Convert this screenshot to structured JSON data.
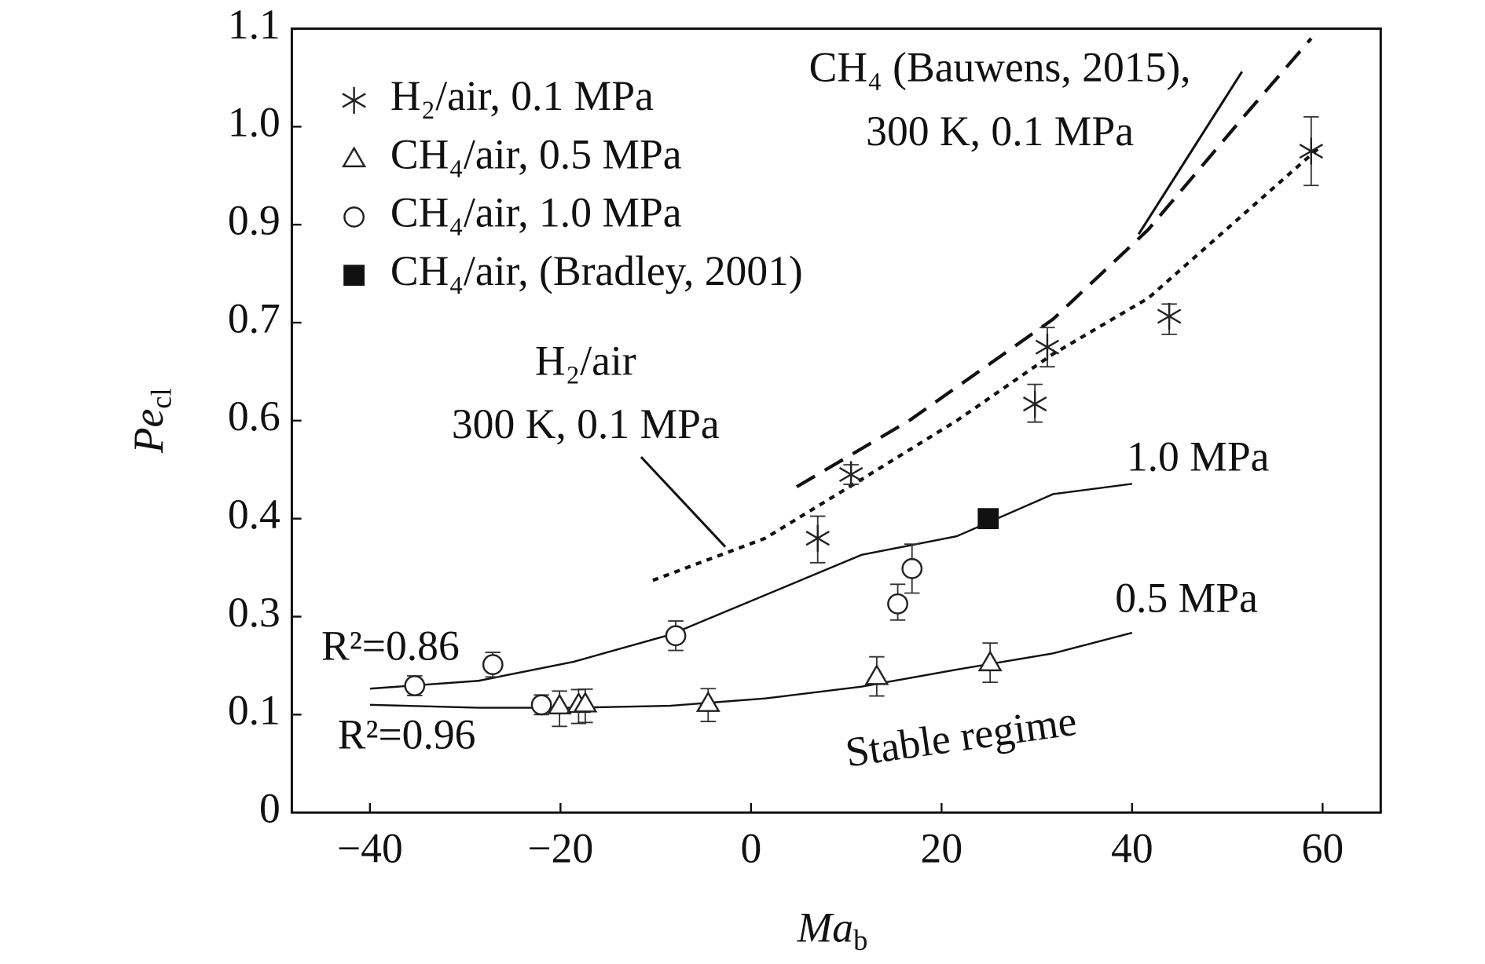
{
  "chart_data": {
    "type": "scatter",
    "xlabel": "Ma",
    "xlabel_sub": "b",
    "ylabel": "Pe",
    "ylabel_sub": "cl",
    "xlim": [
      -48.2,
      66.1
    ],
    "ylim": [
      0,
      1.1
    ],
    "yscale": "ticks-evenly-spaced",
    "xticks": [
      {
        "value": -40,
        "label": "−40"
      },
      {
        "value": -20,
        "label": "−20"
      },
      0,
      20,
      40,
      60
    ],
    "yticks": [
      0,
      0.1,
      0.3,
      0.4,
      0.6,
      0.7,
      0.9,
      {
        "value": 1,
        "label": "1.0"
      },
      1.1
    ],
    "legend": "upper left",
    "series": [
      {
        "name": "H₂/air, 0.1 MPa",
        "marker": "asterisk",
        "color": "#222222",
        "x": [
          7.0,
          10.5,
          29.8,
          31.1,
          43.9,
          58.8
        ],
        "values": [
          0.38,
          0.49,
          0.617,
          0.675,
          0.713,
          0.975
        ],
        "errors": [
          0.025,
          0.02,
          0.02,
          0.02,
          0.025,
          0.035
        ]
      },
      {
        "name": "CH₄/air, 0.5 MPa",
        "marker": "triangle",
        "color": "#222222",
        "x": [
          -20.1,
          -18.1,
          -17.4,
          -4.5,
          13.2,
          25.1
        ],
        "values": [
          0.118,
          0.121,
          0.122,
          0.123,
          0.178,
          0.206
        ],
        "errors": [
          0.03,
          0.03,
          0.03,
          0.03,
          0.04,
          0.04
        ]
      },
      {
        "name": "CH₄/air, 1.0 MPa",
        "marker": "circle",
        "color": "#222222",
        "x": [
          -35.3,
          -27.1,
          -22,
          -7.9,
          15.4,
          16.9
        ],
        "values": [
          0.159,
          0.202,
          0.12,
          0.261,
          0.313,
          0.349
        ],
        "errors": [
          0.02,
          0.025,
          0.02,
          0.03,
          0.02,
          0.025
        ]
      },
      {
        "name": "CH₄/air, (Bradley, 2001)",
        "marker": "square",
        "color": "#111111",
        "x": [
          24.9
        ],
        "values": [
          0.4
        ]
      }
    ],
    "curves": [
      {
        "style": "dashed",
        "x": [
          4.8,
          16.6,
          31.7,
          41.7,
          51.7,
          58.8
        ],
        "values": [
          0.465,
          0.6,
          0.707,
          0.89,
          1.01,
          1.09
        ]
      },
      {
        "style": "dotted",
        "x": [
          -10.3,
          1.5,
          11.6,
          21.6,
          31.7,
          41.7,
          59.8
        ],
        "values": [
          0.337,
          0.38,
          0.48,
          0.6,
          0.668,
          0.75,
          0.98
        ]
      },
      {
        "style": "solid",
        "x": [
          -40,
          -28.6,
          -18.6,
          -8.5,
          1.5,
          11.6,
          21.6,
          31.7,
          40
        ],
        "values": [
          0.153,
          0.169,
          0.208,
          0.263,
          0.322,
          0.363,
          0.382,
          0.45,
          0.471
        ]
      },
      {
        "style": "solid",
        "x": [
          -40,
          -28.6,
          -18.6,
          -8.5,
          1.5,
          11.6,
          21.6,
          31.7,
          40
        ],
        "values": [
          0.12,
          0.114,
          0.114,
          0.118,
          0.133,
          0.157,
          0.192,
          0.225,
          0.267
        ]
      }
    ],
    "annotations": [
      "CH₄ (Bauwens, 2015),",
      "300 K, 0.1 MPa",
      "H₂/air",
      "300 K, 0.1 MPa",
      "1.0 MPa",
      "0.5 MPa",
      "R²=0.86",
      "R²=0.96",
      "Stable regime"
    ]
  }
}
